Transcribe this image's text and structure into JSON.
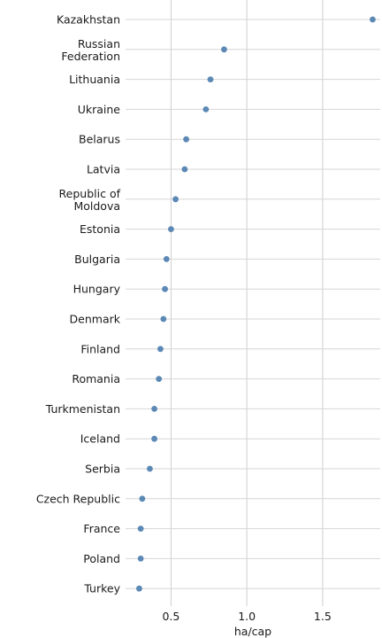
{
  "chart_data": {
    "type": "scatter",
    "orientation": "horizontal-dot",
    "categories": [
      "Kazakhstan",
      "Russian Federation",
      "Lithuania",
      "Ukraine",
      "Belarus",
      "Latvia",
      "Republic of Moldova",
      "Estonia",
      "Bulgaria",
      "Hungary",
      "Denmark",
      "Finland",
      "Romania",
      "Turkmenistan",
      "Iceland",
      "Serbia",
      "Czech Republic",
      "France",
      "Poland",
      "Turkey"
    ],
    "values": [
      1.83,
      0.85,
      0.76,
      0.73,
      0.6,
      0.59,
      0.53,
      0.5,
      0.47,
      0.46,
      0.45,
      0.43,
      0.42,
      0.39,
      0.39,
      0.36,
      0.31,
      0.3,
      0.3,
      0.29
    ],
    "x_ticks": [
      0.5,
      1.0,
      1.5
    ],
    "x_tick_labels": [
      "0.5",
      "1.0",
      "1.5"
    ],
    "xlim": [
      0.2,
      1.88
    ],
    "xlabel": "ha/cap",
    "ylabel": "",
    "title": "",
    "grid": true,
    "marker_color": "#5b88b5"
  }
}
